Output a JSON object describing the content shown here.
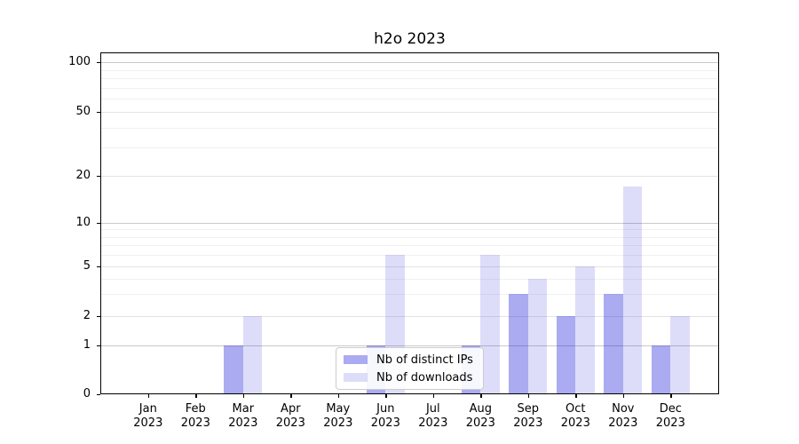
{
  "chart_data": {
    "type": "bar",
    "title": "h2o 2023",
    "categories": [
      "Jan",
      "Feb",
      "Mar",
      "Apr",
      "May",
      "Jun",
      "Jul",
      "Aug",
      "Sep",
      "Oct",
      "Nov",
      "Dec"
    ],
    "x_tick_second_line": "2023",
    "series": [
      {
        "name": "Nb of distinct IPs",
        "color": "rgba(13,13,214,0.35)",
        "values": [
          0,
          0,
          1,
          0,
          0,
          1,
          0,
          1,
          3,
          2,
          3,
          1
        ]
      },
      {
        "name": "Nb of downloads",
        "color": "rgba(13,13,214,0.14)",
        "values": [
          0,
          0,
          2,
          0,
          0,
          6,
          0,
          6,
          4,
          5,
          17,
          2
        ]
      }
    ],
    "xlabel": "",
    "ylabel": "",
    "y_scale": "symlog-like",
    "y_tick_values": [
      0,
      1,
      2,
      5,
      10,
      20,
      50,
      100
    ],
    "y_tick_labels": [
      "0",
      "1",
      "2",
      "5",
      "10",
      "20",
      "50",
      "100"
    ],
    "ylim": [
      0,
      100
    ],
    "grid": true,
    "legend_position": "lower center"
  },
  "colors": {
    "grid_major_power10": "#c9c9c9",
    "grid_major_other": "#e3e3e3",
    "grid_minor": "#f0f0f0",
    "axis": "#000000"
  }
}
